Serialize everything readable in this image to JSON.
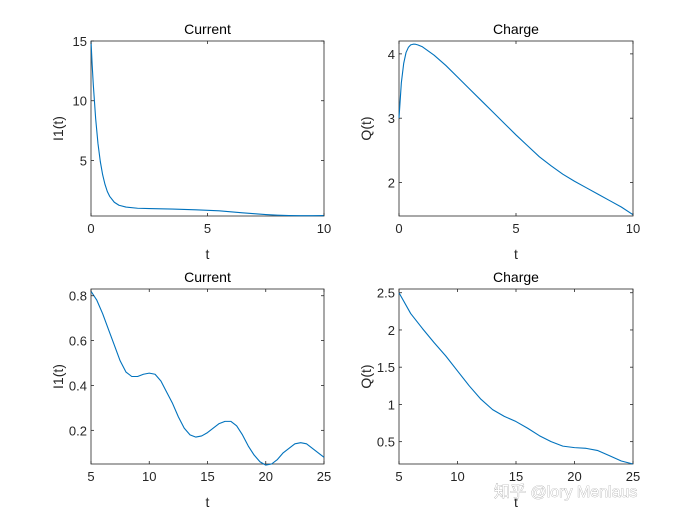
{
  "chart_data": [
    {
      "type": "line",
      "title": "Current",
      "xlabel": "t",
      "ylabel": "I1(t)",
      "xlim": [
        0,
        10
      ],
      "ylim": [
        0.35,
        15
      ],
      "xticks": [
        0,
        5,
        10
      ],
      "yticks": [
        5,
        10,
        15
      ],
      "color": "#0072BD",
      "series": [
        {
          "name": "I1",
          "x": [
            0,
            0.05,
            0.1,
            0.2,
            0.3,
            0.4,
            0.5,
            0.6,
            0.7,
            0.8,
            1.0,
            1.2,
            1.5,
            2.0,
            2.5,
            3,
            3.5,
            4,
            4.5,
            5,
            5.5,
            6,
            6.5,
            7,
            7.5,
            8,
            8.5,
            9,
            9.5,
            10
          ],
          "y": [
            15,
            13.0,
            11.3,
            8.5,
            6.4,
            4.9,
            3.8,
            3.0,
            2.4,
            2.0,
            1.5,
            1.25,
            1.1,
            1.0,
            0.97,
            0.95,
            0.93,
            0.9,
            0.87,
            0.83,
            0.78,
            0.7,
            0.62,
            0.54,
            0.47,
            0.42,
            0.39,
            0.38,
            0.38,
            0.39
          ]
        }
      ]
    },
    {
      "type": "line",
      "title": "Charge",
      "xlabel": "t",
      "ylabel": "Q(t)",
      "xlim": [
        0,
        10
      ],
      "ylim": [
        1.48,
        4.2
      ],
      "xticks": [
        0,
        5,
        10
      ],
      "yticks": [
        2,
        3,
        4
      ],
      "color": "#0072BD",
      "series": [
        {
          "name": "Q",
          "x": [
            0,
            0.1,
            0.2,
            0.3,
            0.4,
            0.5,
            0.6,
            0.7,
            0.8,
            1.0,
            1.5,
            2,
            2.5,
            3,
            3.5,
            4,
            4.5,
            5,
            5.5,
            6,
            6.5,
            7,
            7.5,
            8,
            8.5,
            9,
            9.5,
            10
          ],
          "y": [
            3.0,
            3.55,
            3.85,
            4.02,
            4.1,
            4.14,
            4.15,
            4.15,
            4.14,
            4.11,
            3.98,
            3.82,
            3.64,
            3.46,
            3.28,
            3.1,
            2.92,
            2.74,
            2.57,
            2.4,
            2.26,
            2.13,
            2.02,
            1.92,
            1.82,
            1.72,
            1.62,
            1.5
          ]
        }
      ]
    },
    {
      "type": "line",
      "title": "Current",
      "xlabel": "t",
      "ylabel": "I1(t)",
      "xlim": [
        5,
        25
      ],
      "ylim": [
        0.05,
        0.83
      ],
      "xticks": [
        5,
        10,
        15,
        20,
        25
      ],
      "yticks": [
        0.2,
        0.4,
        0.6,
        0.8
      ],
      "color": "#0072BD",
      "series": [
        {
          "name": "I1",
          "x": [
            5,
            5.5,
            6,
            6.5,
            7,
            7.5,
            8,
            8.5,
            9,
            9.5,
            10,
            10.5,
            11,
            11.5,
            12,
            12.5,
            13,
            13.5,
            14,
            14.5,
            15,
            15.5,
            16,
            16.5,
            17,
            17.5,
            18,
            18.5,
            19,
            19.5,
            20,
            20.5,
            21,
            21.5,
            22,
            22.5,
            23,
            23.5,
            24,
            24.5,
            25
          ],
          "y": [
            0.82,
            0.78,
            0.72,
            0.65,
            0.58,
            0.51,
            0.46,
            0.44,
            0.44,
            0.45,
            0.455,
            0.45,
            0.42,
            0.37,
            0.32,
            0.26,
            0.21,
            0.18,
            0.17,
            0.175,
            0.19,
            0.21,
            0.23,
            0.24,
            0.24,
            0.22,
            0.18,
            0.13,
            0.09,
            0.06,
            0.045,
            0.05,
            0.07,
            0.1,
            0.12,
            0.14,
            0.145,
            0.14,
            0.12,
            0.1,
            0.08
          ]
        }
      ]
    },
    {
      "type": "line",
      "title": "Charge",
      "xlabel": "t",
      "ylabel": "Q(t)",
      "xlim": [
        5,
        25
      ],
      "ylim": [
        0.2,
        2.55
      ],
      "xticks": [
        5,
        10,
        15,
        20,
        25
      ],
      "yticks": [
        0.5,
        1,
        1.5,
        2,
        2.5
      ],
      "color": "#0072BD",
      "series": [
        {
          "name": "Q",
          "x": [
            5,
            6,
            7,
            8,
            9,
            10,
            11,
            12,
            13,
            14,
            15,
            16,
            17,
            18,
            19,
            20,
            21,
            22,
            23,
            24,
            25
          ],
          "y": [
            2.5,
            2.22,
            2.02,
            1.83,
            1.65,
            1.45,
            1.25,
            1.07,
            0.93,
            0.84,
            0.77,
            0.68,
            0.58,
            0.5,
            0.44,
            0.42,
            0.41,
            0.38,
            0.31,
            0.24,
            0.2
          ]
        }
      ]
    }
  ],
  "watermark": "知乎 @lory Menlaus"
}
